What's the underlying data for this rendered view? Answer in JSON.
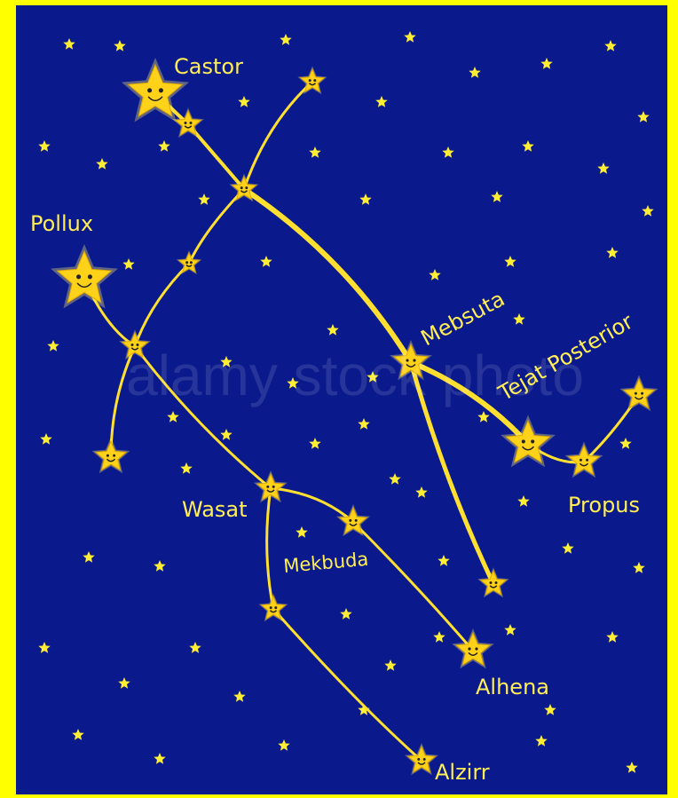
{
  "constellation": {
    "stars": [
      {
        "label": "Castor"
      },
      {
        "label": "Pollux"
      },
      {
        "label": "Mebsuta"
      },
      {
        "label": "Tejat Posterior"
      },
      {
        "label": "Propus"
      },
      {
        "label": "Wasat"
      },
      {
        "label": "Mekbuda"
      },
      {
        "label": "Alhena"
      },
      {
        "label": "Alzirr"
      }
    ],
    "watermark": "alamy stock photo"
  }
}
